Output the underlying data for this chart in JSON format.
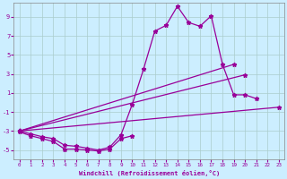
{
  "bg_color": "#cceeff",
  "grid_color": "#aacccc",
  "line_color": "#990099",
  "xlabel": "Windchill (Refroidissement éolien,°C)",
  "xlim": [
    -0.5,
    23.5
  ],
  "ylim": [
    -6.0,
    10.5
  ],
  "xticks": [
    0,
    1,
    2,
    3,
    4,
    5,
    6,
    7,
    8,
    9,
    10,
    11,
    12,
    13,
    14,
    15,
    16,
    17,
    18,
    19,
    20,
    21,
    22,
    23
  ],
  "yticks": [
    -5,
    -3,
    -1,
    1,
    3,
    5,
    7,
    9
  ],
  "series": [
    {
      "x": [
        0,
        1,
        2,
        3,
        4,
        5,
        6,
        7,
        8,
        9,
        10,
        11,
        12,
        13,
        14,
        15,
        16,
        17,
        18,
        19,
        20,
        21
      ],
      "y": [
        -3.0,
        -3.3,
        -3.6,
        -3.8,
        -4.5,
        -4.6,
        -4.8,
        -5.0,
        -4.7,
        -3.4,
        -0.2,
        3.5,
        7.5,
        8.1,
        10.1,
        8.4,
        8.0,
        9.1,
        4.0,
        0.8,
        0.8,
        0.4
      ]
    },
    {
      "x": [
        0,
        1,
        2,
        3,
        4,
        5,
        6,
        7,
        8,
        9,
        10,
        11,
        12,
        13,
        14,
        15,
        16,
        17,
        18,
        19,
        20,
        21
      ],
      "y": [
        -3.1,
        -3.5,
        -3.8,
        -4.1,
        -4.9,
        -4.9,
        -5.0,
        -5.1,
        -4.9,
        -3.8,
        -3.5,
        null,
        null,
        null,
        null,
        null,
        null,
        null,
        null,
        null,
        null,
        null
      ]
    },
    {
      "x": [
        0,
        23
      ],
      "y": [
        -3.0,
        -0.5
      ]
    },
    {
      "x": [
        0,
        20
      ],
      "y": [
        -3.0,
        2.9
      ]
    },
    {
      "x": [
        0,
        19
      ],
      "y": [
        -3.0,
        4.0
      ]
    }
  ]
}
